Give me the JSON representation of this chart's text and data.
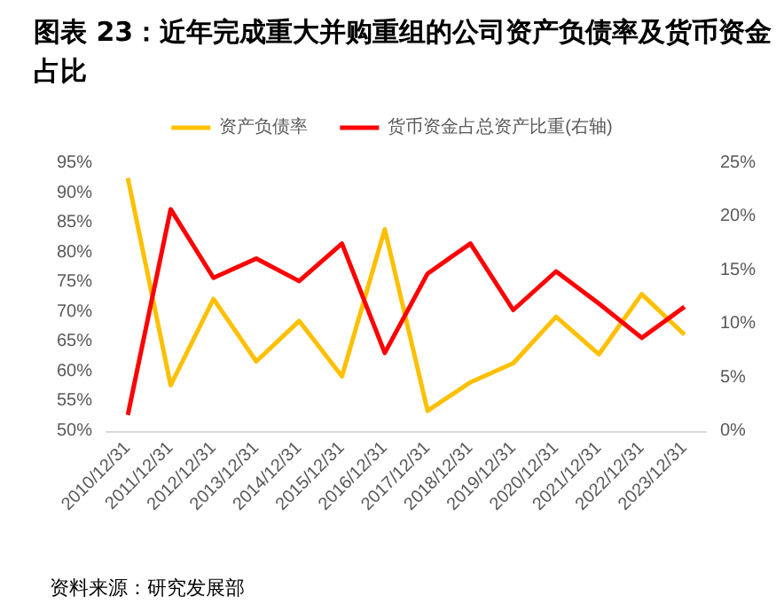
{
  "chart_data": {
    "type": "line",
    "title": "图表 23：近年完成重大并购重组的公司资产负债率及货币资金占比",
    "categories": [
      "2010/12/31",
      "2011/12/31",
      "2012/12/31",
      "2013/12/31",
      "2014/12/31",
      "2015/12/31",
      "2016/12/31",
      "2017/12/31",
      "2018/12/31",
      "2019/12/31",
      "2020/12/31",
      "2021/12/31",
      "2022/12/31",
      "2023/12/31"
    ],
    "series": [
      {
        "name": "资产负债率",
        "color": "#ffc000",
        "values": [
          92.5,
          57.7,
          72.2,
          61.7,
          68.5,
          59.2,
          83.9,
          53.4,
          58.2,
          61.4,
          69.2,
          62.9,
          73,
          66.2
        ]
      },
      {
        "name": "货币资金占总资产比重(右轴)",
        "color": "#ff0000",
        "axis": "y2",
        "values": [
          1.5,
          20.7,
          14.3,
          16.1,
          14,
          17.5,
          7.3,
          14.7,
          17.5,
          11.3,
          14.9,
          11.9,
          8.7,
          11.6
        ]
      }
    ],
    "ylim": [
      50,
      95
    ],
    "yticks": [
      {
        "value": 50,
        "label": "50%"
      },
      {
        "value": 55,
        "label": "55%"
      },
      {
        "value": 60,
        "label": "60%"
      },
      {
        "value": 65,
        "label": "65%"
      },
      {
        "value": 70,
        "label": "70%"
      },
      {
        "value": 75,
        "label": "75%"
      },
      {
        "value": 80,
        "label": "80%"
      },
      {
        "value": 85,
        "label": "85%"
      },
      {
        "value": 90,
        "label": "90%"
      },
      {
        "value": 95,
        "label": "95%"
      }
    ],
    "y2lim": [
      0,
      25
    ],
    "y2ticks": [
      {
        "value": 0,
        "label": "0%"
      },
      {
        "value": 5,
        "label": "5%"
      },
      {
        "value": 10,
        "label": "10%"
      },
      {
        "value": 15,
        "label": "15%"
      },
      {
        "value": 20,
        "label": "20%"
      },
      {
        "value": 25,
        "label": "25%"
      }
    ],
    "legend": "top",
    "grid": false,
    "marker": "none",
    "line_style": "solid",
    "annotations": [
      "资料来源：研究发展部"
    ]
  }
}
